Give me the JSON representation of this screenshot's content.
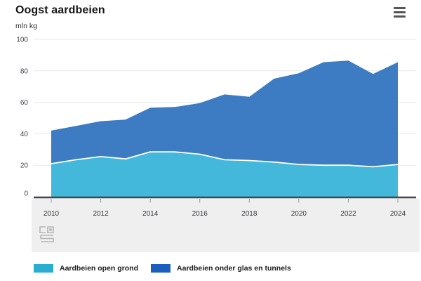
{
  "header": {
    "title": "Oogst aardbeien",
    "unit": "mln kg"
  },
  "chart_data": {
    "type": "area",
    "stacked": true,
    "title": "Oogst aardbeien",
    "ylabel": "mln kg",
    "x": [
      2010,
      2011,
      2012,
      2013,
      2014,
      2015,
      2016,
      2017,
      2018,
      2019,
      2020,
      2021,
      2022,
      2023,
      2024
    ],
    "x_tick_labels": [
      "2010",
      "2012",
      "2014",
      "2016",
      "2018",
      "2020",
      "2022",
      "2024"
    ],
    "yticks": [
      0,
      20,
      40,
      60,
      80,
      100
    ],
    "ylim": [
      0,
      100
    ],
    "grid": true,
    "legend_position": "bottom",
    "series": [
      {
        "name": "Aardbeien open grond",
        "legend_color": "#29aed2",
        "area_color": "#44b8da",
        "values": [
          21,
          23.5,
          25.5,
          24,
          28.5,
          28.5,
          27,
          23.5,
          23,
          22,
          20.5,
          20,
          20,
          19,
          20.5
        ]
      },
      {
        "name": "Aardbeien onder glas en tunnels",
        "legend_color": "#1a5fbe",
        "area_color": "#3d7cc3",
        "values": [
          21,
          21.5,
          22.5,
          25,
          28,
          28.5,
          32.5,
          41.5,
          40.5,
          53,
          58,
          65.5,
          66.5,
          59,
          65
        ]
      }
    ],
    "totals": [
      42,
      45,
      48,
      49,
      56.5,
      57,
      59.5,
      65,
      63.5,
      75,
      78.5,
      85.5,
      86.5,
      78,
      85.5
    ],
    "colors": {
      "gridline": "#e8e8e8",
      "zero_axis": "#40464d",
      "axis_band": "#efefef",
      "tick": "#999999",
      "separator_line": "#ffffff",
      "logo": "#b5b5b5"
    }
  }
}
